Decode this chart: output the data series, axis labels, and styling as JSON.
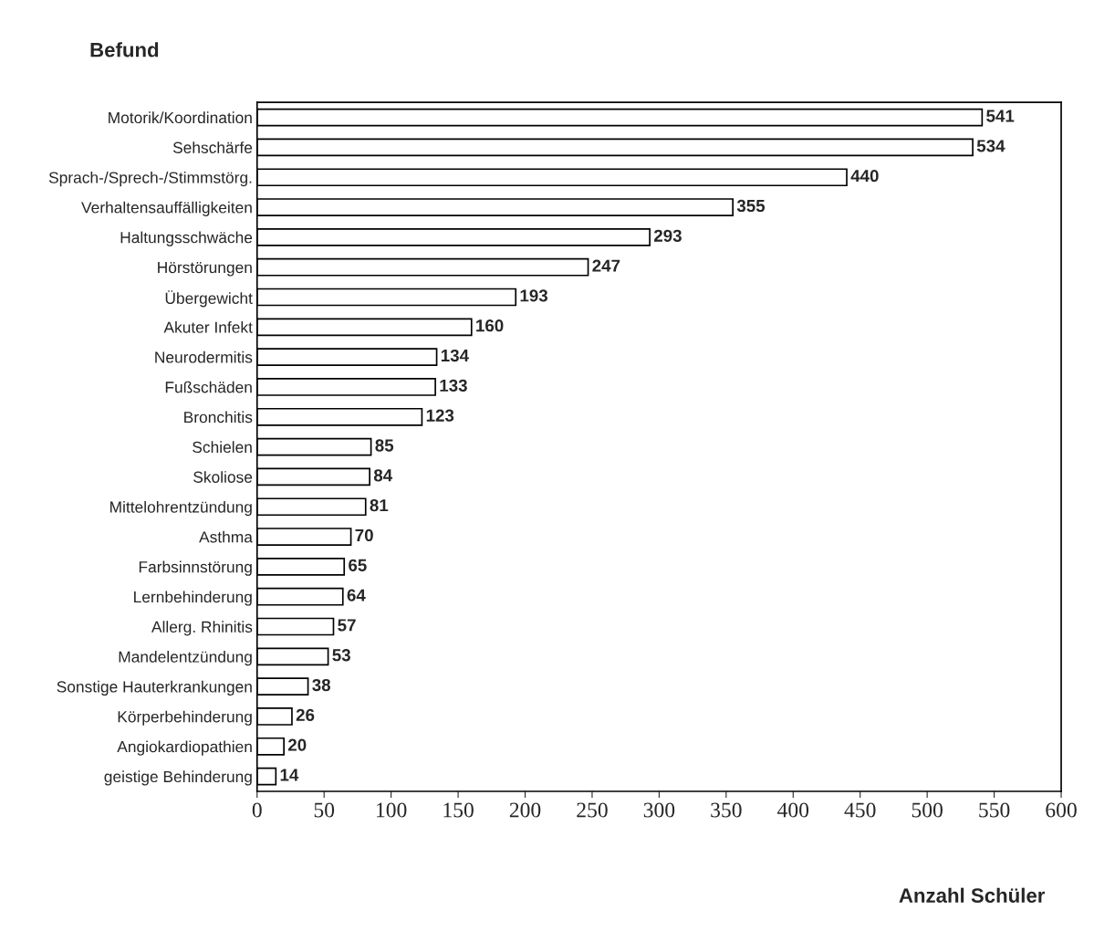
{
  "chart_data": {
    "type": "bar",
    "orientation": "horizontal",
    "xlabel": "Anzahl Schüler",
    "ylabel": "Befund",
    "categories": [
      "Motorik/Koordination",
      "Sehschärfe",
      "Sprach-/Sprech-/Stimmstörg.",
      "Verhaltensauffälligkeiten",
      "Haltungsschwäche",
      "Hörstörungen",
      "Übergewicht",
      "Akuter Infekt",
      "Neurodermitis",
      "Fußschäden",
      "Bronchitis",
      "Schielen",
      "Skoliose",
      "Mittelohrentzündung",
      "Asthma",
      "Farbsinnstörung",
      "Lernbehinderung",
      "Allerg. Rhinitis",
      "Mandelentzündung",
      "Sonstige Hauterkrankungen",
      "Körperbehinderung",
      "Angiokardiopathien",
      "geistige Behinderung"
    ],
    "values": [
      541,
      534,
      440,
      355,
      293,
      247,
      193,
      160,
      134,
      133,
      123,
      85,
      84,
      81,
      70,
      65,
      64,
      57,
      53,
      38,
      26,
      20,
      14
    ],
    "color": "#ffffff",
    "xlim": [
      0,
      600
    ],
    "xticks": [
      0,
      50,
      100,
      150,
      200,
      250,
      300,
      350,
      400,
      450,
      500,
      550,
      600
    ],
    "data_labels": true,
    "grid": false,
    "legend": false
  }
}
